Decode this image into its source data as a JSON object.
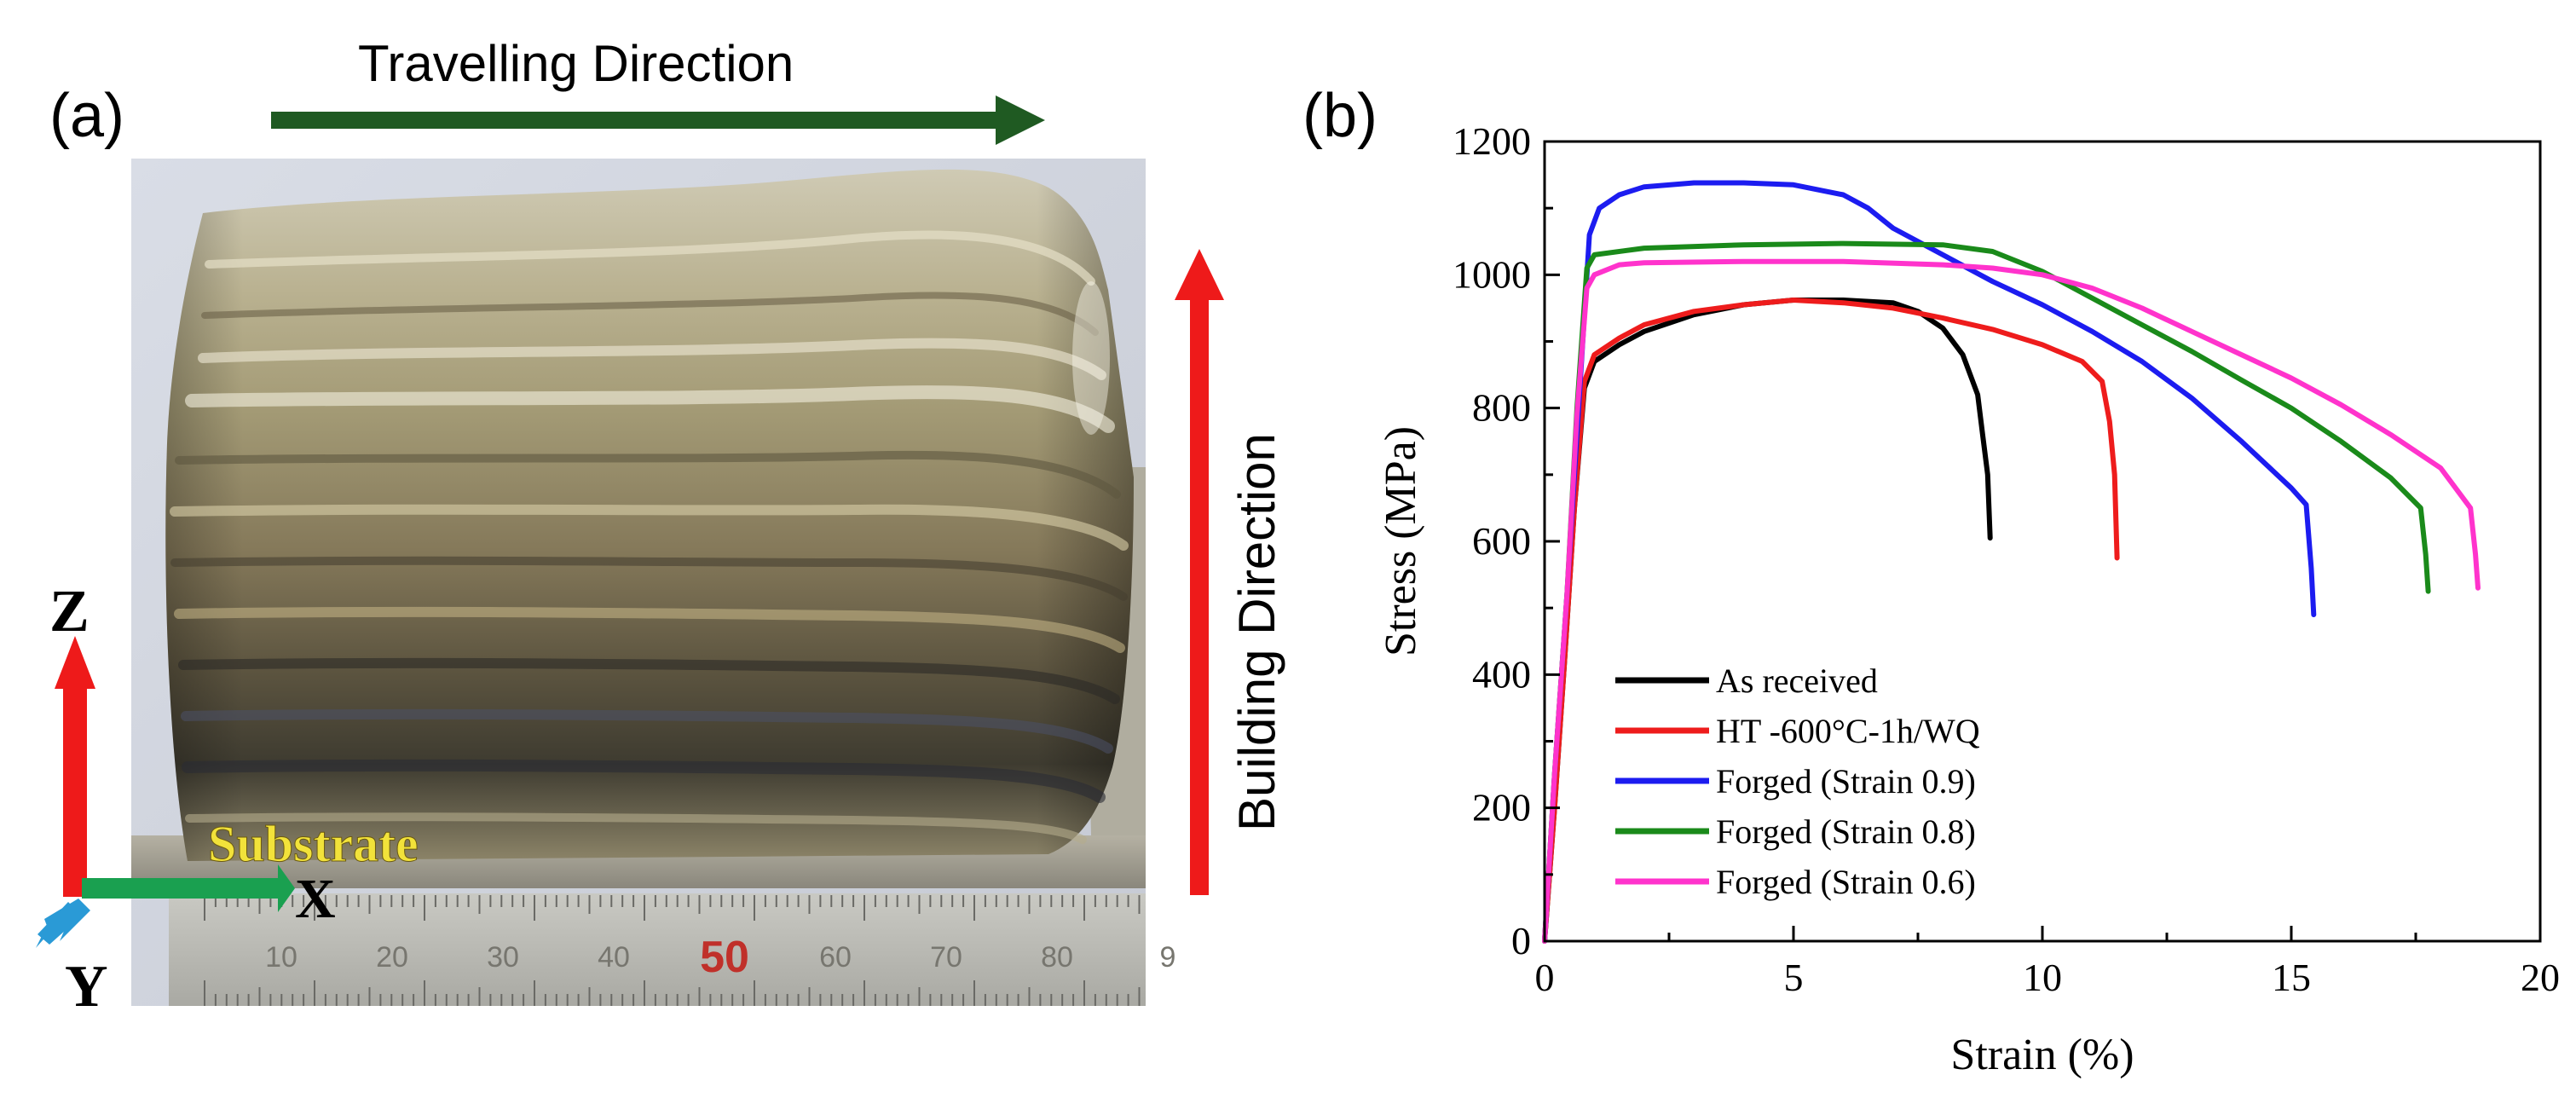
{
  "panel_a": {
    "label": "(a)",
    "travel_label": "Travelling Direction",
    "build_label": "Building Direction",
    "substrate_label": "Substrate",
    "axis_z": "Z",
    "axis_x": "X",
    "axis_y": "Y",
    "ruler_numbers": [
      "10",
      "20",
      "30",
      "40",
      "50",
      "60",
      "70",
      "80",
      "9"
    ],
    "colors": {
      "travel_arrow": "#1f5a22",
      "build_arrow": "#ee1a1a",
      "z_arrow": "#ee1a1a",
      "x_arrow": "#1aa050",
      "y_arrow": "#2a9ad6",
      "substrate_text": "#f2e23a",
      "ruler_highlight": "#c0302a"
    }
  },
  "panel_b": {
    "label": "(b)"
  },
  "chart_data": {
    "type": "line",
    "title": "",
    "xlabel": "Strain (%)",
    "ylabel": "Stress (MPa)",
    "xlim": [
      0,
      20
    ],
    "ylim": [
      0,
      1200
    ],
    "xticks": [
      0,
      5,
      10,
      15,
      20
    ],
    "yticks": [
      0,
      200,
      400,
      600,
      800,
      1000,
      1200
    ],
    "grid": false,
    "legend_position": "lower-left",
    "series": [
      {
        "name": "As received",
        "color": "#000000",
        "points": [
          [
            0,
            0
          ],
          [
            0.2,
            200
          ],
          [
            0.4,
            420
          ],
          [
            0.6,
            650
          ],
          [
            0.8,
            830
          ],
          [
            1.0,
            870
          ],
          [
            1.5,
            895
          ],
          [
            2,
            915
          ],
          [
            3,
            940
          ],
          [
            4,
            955
          ],
          [
            5,
            962
          ],
          [
            6,
            962
          ],
          [
            7,
            958
          ],
          [
            7.5,
            945
          ],
          [
            8.0,
            920
          ],
          [
            8.4,
            880
          ],
          [
            8.7,
            820
          ],
          [
            8.8,
            760
          ],
          [
            8.9,
            700
          ],
          [
            8.95,
            605
          ]
        ]
      },
      {
        "name": "HT -600°C-1h/WQ",
        "color": "#ee1c1c",
        "points": [
          [
            0,
            0
          ],
          [
            0.2,
            200
          ],
          [
            0.4,
            420
          ],
          [
            0.6,
            650
          ],
          [
            0.8,
            840
          ],
          [
            1.0,
            880
          ],
          [
            1.5,
            905
          ],
          [
            2,
            925
          ],
          [
            3,
            945
          ],
          [
            4,
            955
          ],
          [
            5,
            962
          ],
          [
            6,
            958
          ],
          [
            7,
            950
          ],
          [
            8,
            935
          ],
          [
            9,
            918
          ],
          [
            10,
            895
          ],
          [
            10.8,
            870
          ],
          [
            11.2,
            840
          ],
          [
            11.35,
            780
          ],
          [
            11.45,
            700
          ],
          [
            11.5,
            575
          ]
        ]
      },
      {
        "name": "Forged (Strain 0.9)",
        "color": "#1c1cf0",
        "points": [
          [
            0,
            0
          ],
          [
            0.2,
            250
          ],
          [
            0.45,
            520
          ],
          [
            0.7,
            820
          ],
          [
            0.9,
            1060
          ],
          [
            1.1,
            1100
          ],
          [
            1.5,
            1120
          ],
          [
            2,
            1132
          ],
          [
            3,
            1138
          ],
          [
            4,
            1138
          ],
          [
            5,
            1135
          ],
          [
            6,
            1120
          ],
          [
            6.5,
            1100
          ],
          [
            7,
            1070
          ],
          [
            8,
            1030
          ],
          [
            9,
            990
          ],
          [
            10,
            955
          ],
          [
            11,
            915
          ],
          [
            12,
            870
          ],
          [
            13,
            815
          ],
          [
            14,
            750
          ],
          [
            15,
            680
          ],
          [
            15.3,
            655
          ],
          [
            15.4,
            560
          ],
          [
            15.45,
            490
          ]
        ]
      },
      {
        "name": "Forged (Strain 0.8)",
        "color": "#1a8a1a",
        "points": [
          [
            0,
            0
          ],
          [
            0.2,
            250
          ],
          [
            0.45,
            520
          ],
          [
            0.65,
            800
          ],
          [
            0.85,
            1010
          ],
          [
            1.0,
            1030
          ],
          [
            2,
            1040
          ],
          [
            4,
            1045
          ],
          [
            6,
            1047
          ],
          [
            8,
            1045
          ],
          [
            9,
            1035
          ],
          [
            10,
            1005
          ],
          [
            11,
            965
          ],
          [
            12,
            925
          ],
          [
            13,
            885
          ],
          [
            14,
            842
          ],
          [
            15,
            800
          ],
          [
            16,
            750
          ],
          [
            17,
            695
          ],
          [
            17.6,
            650
          ],
          [
            17.7,
            580
          ],
          [
            17.75,
            525
          ]
        ]
      },
      {
        "name": "Forged (Strain 0.6)",
        "color": "#ff33cc",
        "points": [
          [
            0,
            0
          ],
          [
            0.2,
            250
          ],
          [
            0.45,
            520
          ],
          [
            0.65,
            790
          ],
          [
            0.85,
            980
          ],
          [
            1.0,
            1000
          ],
          [
            1.5,
            1015
          ],
          [
            2,
            1018
          ],
          [
            4,
            1020
          ],
          [
            6,
            1020
          ],
          [
            8,
            1015
          ],
          [
            9,
            1010
          ],
          [
            10,
            1000
          ],
          [
            11,
            980
          ],
          [
            12,
            950
          ],
          [
            13,
            915
          ],
          [
            14,
            880
          ],
          [
            15,
            845
          ],
          [
            16,
            805
          ],
          [
            17,
            760
          ],
          [
            18,
            710
          ],
          [
            18.6,
            650
          ],
          [
            18.7,
            580
          ],
          [
            18.75,
            530
          ]
        ]
      }
    ]
  }
}
